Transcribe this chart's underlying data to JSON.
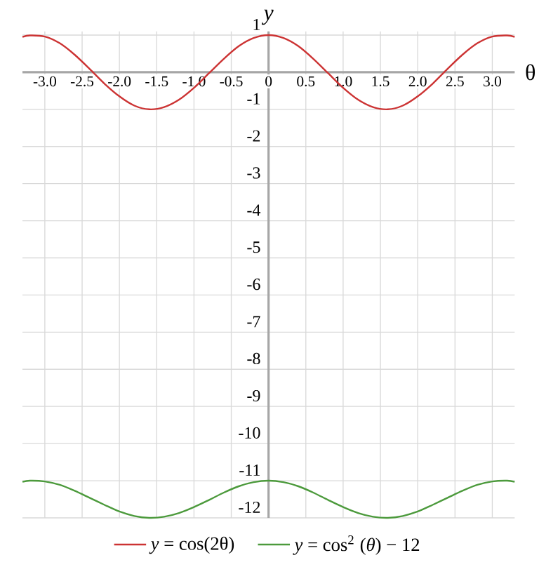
{
  "chart_data": {
    "type": "line",
    "xlabel": "θ",
    "ylabel": "*y*",
    "x": [
      -3.3,
      -3.2,
      -3.0,
      -2.8,
      -2.6,
      -2.4,
      -2.2,
      -2.0,
      -1.8,
      -1.6,
      -1.4,
      -1.2,
      -1.0,
      -0.8,
      -0.6,
      -0.4,
      -0.2,
      0,
      0.2,
      0.4,
      0.6,
      0.8,
      1.0,
      1.2,
      1.4,
      1.6,
      1.8,
      2.0,
      2.2,
      2.4,
      2.6,
      2.8,
      3.0,
      3.2,
      3.3
    ],
    "series": [
      {
        "name": "*y* = cos(2θ)",
        "color": "#cc3333",
        "values": [
          0.95,
          0.99,
          0.96,
          0.78,
          0.47,
          0.09,
          -0.31,
          -0.65,
          -0.9,
          -1.0,
          -0.94,
          -0.74,
          -0.42,
          -0.03,
          0.36,
          0.7,
          0.92,
          1.0,
          0.92,
          0.7,
          0.36,
          -0.03,
          -0.42,
          -0.74,
          -0.94,
          -1.0,
          -0.9,
          -0.65,
          -0.31,
          0.09,
          0.47,
          0.78,
          0.96,
          0.99,
          0.95
        ]
      },
      {
        "name": "*y* = cos$^{2}$ (*θ*) − 12",
        "color": "#4c9a3c",
        "values": [
          -11.03,
          -11.0,
          -11.02,
          -11.11,
          -11.27,
          -11.46,
          -11.65,
          -11.83,
          -11.95,
          -12.0,
          -11.97,
          -11.87,
          -11.71,
          -11.52,
          -11.32,
          -11.15,
          -11.04,
          -11.0,
          -11.04,
          -11.15,
          -11.32,
          -11.52,
          -11.71,
          -11.87,
          -11.97,
          -12.0,
          -11.95,
          -11.83,
          -11.65,
          -11.46,
          -11.27,
          -11.11,
          -11.02,
          -11.0,
          -11.03
        ]
      }
    ],
    "xlim": [
      -3.3,
      3.3
    ],
    "ylim": [
      -12,
      1.1
    ],
    "xticks": [
      {
        "value": -3,
        "label": "-3.0"
      },
      {
        "value": -2.5,
        "label": "-2.5"
      },
      {
        "value": -2,
        "label": "-2.0"
      },
      {
        "value": -1.5,
        "label": "-1.5"
      },
      {
        "value": -1,
        "label": "-1.0"
      },
      {
        "value": -0.5,
        "label": "-0.5"
      },
      0,
      {
        "value": 0.5,
        "label": "0.5"
      },
      {
        "value": 1,
        "label": "1.0"
      },
      {
        "value": 1.5,
        "label": "1.5"
      },
      {
        "value": 2,
        "label": "2.0"
      },
      {
        "value": 2.5,
        "label": "2.5"
      },
      {
        "value": 3,
        "label": "3.0"
      }
    ],
    "yticks": [
      1,
      {
        "value": 0,
        "label": null
      },
      -1,
      -2,
      -3,
      -4,
      -5,
      -6,
      -7,
      -8,
      -9,
      -10,
      -11,
      -12
    ],
    "grid": true,
    "legend": "bottom",
    "marker": "none",
    "line_style": "solid"
  }
}
